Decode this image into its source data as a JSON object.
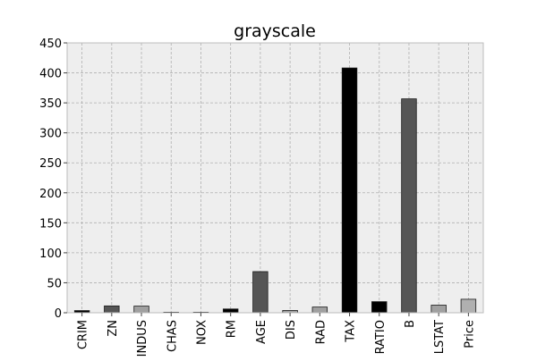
{
  "chart_data": {
    "type": "bar",
    "title": "grayscale",
    "xlabel": "",
    "ylabel": "",
    "categories": [
      "CRIM",
      "ZN",
      "INDUS",
      "CHAS",
      "NOX",
      "RM",
      "AGE",
      "DIS",
      "RAD",
      "TAX",
      "RATIO",
      "B",
      "LSTAT",
      "Price"
    ],
    "values": [
      3.6,
      11.4,
      11.1,
      0.07,
      0.55,
      6.3,
      68.6,
      3.8,
      9.5,
      408.2,
      18.5,
      356.7,
      12.7,
      22.5
    ],
    "bar_colors": [
      "#000000",
      "#555555",
      "#a0a0a0",
      "#bbbbbb",
      "#cccccc",
      "#000000",
      "#555555",
      "#a0a0a0",
      "#a0a0a0",
      "#000000",
      "#000000",
      "#555555",
      "#a0a0a0",
      "#b0b0b0"
    ],
    "ylim": [
      0,
      450
    ],
    "yticks": [
      0,
      50,
      100,
      150,
      200,
      250,
      300,
      350,
      400,
      450
    ],
    "grid": true,
    "legend": "none",
    "colors": {
      "plot_background": "#eeeeee",
      "grid": "#b0b0b0",
      "axes_edge": "#bcbcbc",
      "bar_edge": "#1a1a1a"
    }
  }
}
